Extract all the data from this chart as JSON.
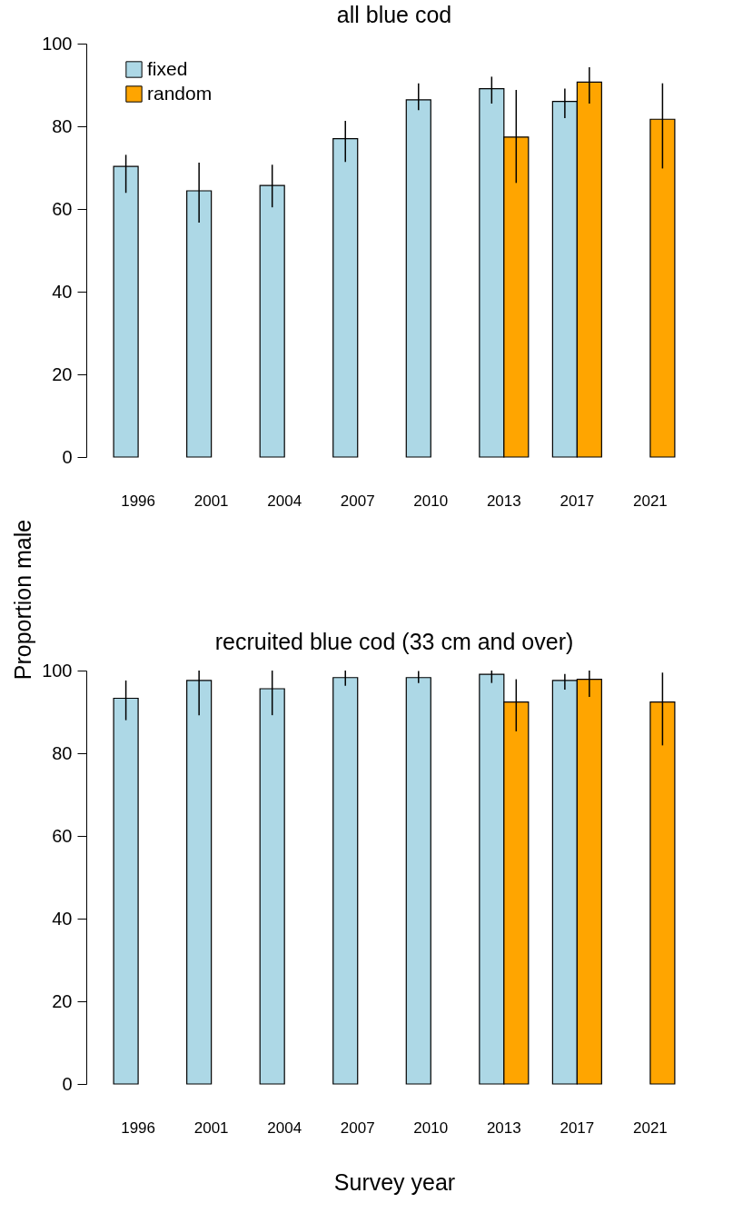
{
  "chart_data": [
    {
      "type": "bar",
      "title": "all blue cod",
      "ylabel": "Proportion male",
      "categories": [
        "1996",
        "2001",
        "2004",
        "2007",
        "2010",
        "2013",
        "2017",
        "2021"
      ],
      "ylim": [
        0,
        100
      ],
      "yticks": [
        0,
        20,
        40,
        60,
        80,
        100
      ],
      "grid": false,
      "legend": "top left",
      "series": [
        {
          "name": "fixed",
          "color": "#add8e6",
          "values": [
            70.3,
            64.4,
            65.7,
            77.0,
            86.4,
            89.1,
            86.0,
            null
          ],
          "errors": [
            [
              63.9,
              73.1
            ],
            [
              56.7,
              71.2
            ],
            [
              60.4,
              70.7
            ],
            [
              71.4,
              81.3
            ],
            [
              83.9,
              90.4
            ],
            [
              85.5,
              92.0
            ],
            [
              82.0,
              89.1
            ],
            null
          ]
        },
        {
          "name": "random",
          "color": "#ffa500",
          "values": [
            null,
            null,
            null,
            null,
            null,
            77.4,
            90.7,
            81.7
          ],
          "errors": [
            null,
            null,
            null,
            null,
            null,
            [
              66.3,
              88.8
            ],
            [
              85.5,
              94.3
            ],
            [
              69.8,
              90.4
            ]
          ]
        }
      ]
    },
    {
      "type": "bar",
      "title": "recruited blue cod (33 cm and over)",
      "xlabel": "Survey year",
      "categories": [
        "1996",
        "2001",
        "2004",
        "2007",
        "2010",
        "2013",
        "2017",
        "2021"
      ],
      "ylim": [
        0,
        100
      ],
      "yticks": [
        0,
        20,
        40,
        60,
        80,
        100
      ],
      "grid": false,
      "legend": false,
      "series": [
        {
          "color": "#add8e6",
          "values": [
            93.3,
            97.6,
            95.6,
            98.3,
            98.3,
            99.1,
            97.6,
            null
          ],
          "errors": [
            [
              88.0,
              97.6
            ],
            [
              89.2,
              100
            ],
            [
              89.2,
              100
            ],
            [
              96.3,
              100
            ],
            [
              97.0,
              99.9
            ],
            [
              97.0,
              100
            ],
            [
              95.4,
              99.2
            ],
            null
          ]
        },
        {
          "color": "#ffa500",
          "values": [
            null,
            null,
            null,
            null,
            null,
            92.4,
            97.9,
            92.4
          ],
          "errors": [
            null,
            null,
            null,
            null,
            null,
            [
              85.3,
              97.9
            ],
            [
              93.6,
              100
            ],
            [
              81.9,
              99.5
            ]
          ]
        }
      ]
    }
  ]
}
